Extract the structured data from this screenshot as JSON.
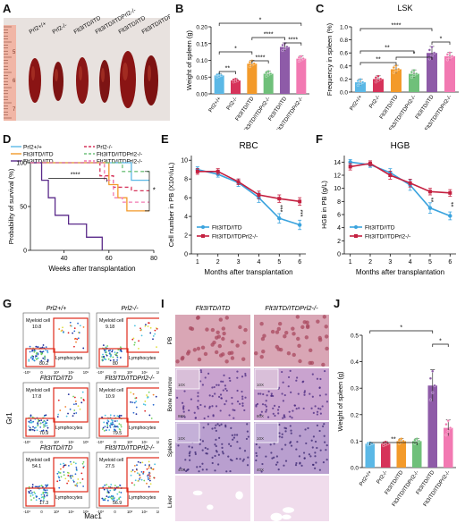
{
  "panels": {
    "A": "A",
    "B": "B",
    "C": "C",
    "D": "D",
    "E": "E",
    "F": "F",
    "G": "G",
    "I": "I",
    "J": "J"
  },
  "panel_a": {
    "ruler_ticks": [
      "5",
      "6",
      "7"
    ],
    "labels": [
      "Prl2+/+",
      "Prl2-/-",
      "Flt3ITD/ITD",
      "Flt3ITD/ITDPrl2-/-",
      "Flt3ITD/ITD",
      "Flt3ITD/ITDPrl2-/-"
    ]
  },
  "panel_g": {
    "col_titles": [
      "Prl2+/+",
      "Prl2-/-"
    ],
    "row_titles": [
      [
        "",
        ""
      ],
      [
        "Flt3ITD/ITD",
        "Flt3ITD/ITDPrl2-/-"
      ],
      [
        "Flt3ITD/ITD",
        "Flt3ITD/ITDPrl2-/-"
      ]
    ],
    "myeloid_label": "Myeloid cell",
    "lymph_label": "Lymphocytes",
    "myeloid_values": [
      [
        "10.8",
        "9.18"
      ],
      [
        "17.8",
        "10.9"
      ],
      [
        "54.1",
        "27.5"
      ]
    ],
    "lymph_values": [
      [
        "80.2",
        "80"
      ],
      [
        "70.9",
        "79.5"
      ],
      [
        "17.3",
        "56.9"
      ]
    ],
    "ylabel": "Gr1",
    "xlabel": "Mac1",
    "axis_ticks": [
      "-10³",
      "0",
      "10³",
      "10⁴",
      "10⁵"
    ]
  },
  "panel_i": {
    "col_titles": [
      "Flt3ITD/ITD",
      "Flt3ITD/ITDPrl2-/-"
    ],
    "row_titles": [
      "PB",
      "Bone marrow",
      "Spleen",
      "Liver"
    ],
    "mag_labels": [
      "",
      "80X",
      "40X",
      "2X"
    ],
    "inset_labels": [
      "",
      "10X",
      "10X",
      ""
    ],
    "tissue_colors": {
      "pb_bg": "#d9a6b5",
      "pb_cell": "#a8485f",
      "bm_bg": "#c9a3cf",
      "bm_cell": "#4a2a80",
      "sp_bg": "#b99fcf",
      "sp_cell": "#3a2570",
      "lv_bg": "#f0dcec",
      "lv_vessel": "#ffffff"
    }
  },
  "chart_data": [
    {
      "id": "B",
      "type": "bar",
      "title": "",
      "ylabel": "Weight of spleen (g)",
      "categories": [
        "Prl2+/+",
        "Prl2-/-",
        "Flt3ITD/ITD",
        "Flt3ITD/ITDPrl2-/-",
        "Flt3ITD/ITD",
        "Flt3ITD/ITDPrl2-/-"
      ],
      "values": [
        0.055,
        0.04,
        0.09,
        0.06,
        0.14,
        0.105
      ],
      "errors": [
        0.005,
        0.005,
        0.01,
        0.008,
        0.012,
        0.008
      ],
      "ylim": [
        0,
        0.2
      ],
      "yticks": [
        "0.00",
        "0.05",
        "0.10",
        "0.15",
        "0.20"
      ],
      "colors": [
        "#5bb8e6",
        "#d6335a",
        "#f39a2a",
        "#6fc07a",
        "#8e5ba8",
        "#f279b2"
      ],
      "significance": [
        "**",
        "****",
        "*",
        "****",
        "****",
        "*"
      ]
    },
    {
      "id": "C",
      "type": "bar",
      "title": "LSK",
      "ylabel": "Frequency in spleen (%)",
      "categories": [
        "Prl2+/+",
        "Prl2-/-",
        "Flt3ITD/ITD",
        "Flt3ITD/ITDPrl2-/-",
        "Flt3ITD/ITD",
        "Flt3ITD/ITDPrl2-/-"
      ],
      "values": [
        0.15,
        0.2,
        0.35,
        0.28,
        0.6,
        0.55
      ],
      "errors": [
        0.05,
        0.05,
        0.06,
        0.06,
        0.1,
        0.06
      ],
      "ylim": [
        0,
        1.0
      ],
      "yticks": [
        "0.0",
        "0.2",
        "0.4",
        "0.6",
        "0.8",
        "1.0"
      ],
      "colors": [
        "#5bb8e6",
        "#d6335a",
        "#f39a2a",
        "#6fc07a",
        "#8e5ba8",
        "#f279b2"
      ],
      "significance": [
        "**",
        "****",
        "**",
        "*",
        "*"
      ]
    },
    {
      "id": "D",
      "type": "line",
      "title": "",
      "xlabel": "Weeks after transplantation",
      "ylabel": "Probability of survival (%)",
      "xticks": [
        "40",
        "60",
        "80"
      ],
      "yticks": [
        "0",
        "50",
        "100"
      ],
      "xlim": [
        25,
        80
      ],
      "ylim": [
        0,
        100
      ],
      "legend": [
        "Prl2+/+",
        "Prl2-/-",
        "Flt3ITD/ITD",
        "Flt3ITD/ITDPrl2-/-",
        "Flt3ITD/ITD",
        "Flt3ITD/ITDPrl2-/-"
      ],
      "legend_colors": [
        "#5bb8e6",
        "#d6335a",
        "#f39a2a",
        "#6fc07a",
        "#5a2a8a",
        "#f279b2"
      ],
      "significance": [
        "****",
        "*"
      ],
      "series": [
        {
          "color": "#5bb8e6",
          "dash": "0",
          "points": [
            [
              25,
              100
            ],
            [
              70,
              100
            ],
            [
              70,
              80
            ],
            [
              78,
              80
            ]
          ]
        },
        {
          "color": "#d6335a",
          "dash": "4 3",
          "points": [
            [
              25,
              100
            ],
            [
              56,
              100
            ],
            [
              56,
              85
            ],
            [
              62,
              85
            ],
            [
              62,
              72
            ],
            [
              70,
              72
            ],
            [
              70,
              68
            ],
            [
              78,
              68
            ]
          ]
        },
        {
          "color": "#f39a2a",
          "dash": "0",
          "points": [
            [
              25,
              100
            ],
            [
              60,
              100
            ],
            [
              60,
              75
            ],
            [
              64,
              75
            ],
            [
              64,
              60
            ],
            [
              68,
              60
            ],
            [
              68,
              45
            ],
            [
              78,
              45
            ]
          ]
        },
        {
          "color": "#6fc07a",
          "dash": "4 3",
          "points": [
            [
              25,
              100
            ],
            [
              66,
              100
            ],
            [
              66,
              90
            ],
            [
              78,
              90
            ]
          ]
        },
        {
          "color": "#5a2a8a",
          "dash": "0",
          "points": [
            [
              25,
              100
            ],
            [
              30,
              100
            ],
            [
              30,
              80
            ],
            [
              33,
              80
            ],
            [
              33,
              60
            ],
            [
              36,
              60
            ],
            [
              36,
              40
            ],
            [
              42,
              40
            ],
            [
              42,
              30
            ],
            [
              50,
              30
            ],
            [
              50,
              15
            ],
            [
              57,
              15
            ],
            [
              57,
              0
            ]
          ]
        },
        {
          "color": "#f279b2",
          "dash": "4 3",
          "points": [
            [
              25,
              100
            ],
            [
              58,
              100
            ],
            [
              58,
              80
            ],
            [
              62,
              80
            ],
            [
              62,
              60
            ],
            [
              66,
              60
            ],
            [
              66,
              55
            ],
            [
              78,
              55
            ]
          ]
        }
      ]
    },
    {
      "id": "E",
      "type": "line",
      "title": "RBC",
      "xlabel": "Months after transplantation",
      "ylabel": "Cell number in PB (X10⁶/uL)",
      "x": [
        1,
        2,
        3,
        4,
        5,
        6
      ],
      "xticks": [
        "1",
        "2",
        "3",
        "4",
        "5",
        "6"
      ],
      "yticks": [
        "0",
        "2",
        "4",
        "6",
        "8",
        "10"
      ],
      "ylim": [
        0,
        10.5
      ],
      "legend": [
        "Flt3ITD/ITD",
        "Flt3ITD/ITDPrl2-/-"
      ],
      "significance": [
        "***",
        "***"
      ],
      "series": [
        {
          "name": "Flt3ITD/ITD",
          "color": "#3aa3de",
          "values": [
            9.0,
            8.5,
            7.6,
            6.0,
            3.8,
            3.1
          ],
          "errors": [
            0.3,
            0.3,
            0.4,
            0.5,
            0.5,
            0.5
          ]
        },
        {
          "name": "Flt3ITD/ITDPrl2-/-",
          "color": "#c42040",
          "values": [
            8.8,
            8.8,
            7.7,
            6.3,
            5.9,
            5.6
          ],
          "errors": [
            0.3,
            0.3,
            0.3,
            0.4,
            0.4,
            0.4
          ]
        }
      ]
    },
    {
      "id": "F",
      "type": "line",
      "title": "HGB",
      "xlabel": "Months after transplantation",
      "ylabel": "HGB in PB (g/L)",
      "x": [
        1,
        2,
        3,
        4,
        5,
        6
      ],
      "xticks": [
        "1",
        "2",
        "3",
        "4",
        "5",
        "6"
      ],
      "yticks": [
        "0",
        "2",
        "4",
        "6",
        "8",
        "10",
        "12",
        "14"
      ],
      "ylim": [
        0,
        15
      ],
      "legend": [
        "Flt3ITD/ITD",
        "Flt3ITD/ITDPrl2-/-"
      ],
      "significance": [
        "**",
        "**"
      ],
      "series": [
        {
          "name": "Flt3ITD/ITD",
          "color": "#3aa3de",
          "values": [
            14.0,
            13.6,
            12.4,
            10.5,
            7.0,
            5.8
          ],
          "errors": [
            0.4,
            0.4,
            0.6,
            0.8,
            0.8,
            0.6
          ]
        },
        {
          "name": "Flt3ITD/ITDPrl2-/-",
          "color": "#c42040",
          "values": [
            13.3,
            13.8,
            12.0,
            10.8,
            9.5,
            9.3
          ],
          "errors": [
            0.5,
            0.4,
            0.6,
            0.6,
            0.5,
            0.5
          ]
        }
      ]
    },
    {
      "id": "J",
      "type": "bar",
      "title": "",
      "ylabel": "Weight of spleen (g)",
      "categories": [
        "Prl2+/+",
        "Prl2-/-",
        "Flt3ITD/ITD",
        "Flt3ITD/ITDPrl2-/-",
        "Flt3ITD/ITD",
        "Flt3ITD/ITDPrl2-/-"
      ],
      "values": [
        0.09,
        0.09,
        0.1,
        0.1,
        0.31,
        0.15
      ],
      "errors": [
        0.005,
        0.008,
        0.01,
        0.01,
        0.06,
        0.03
      ],
      "ylim": [
        0,
        0.5
      ],
      "yticks": [
        "0.0",
        "0.1",
        "0.2",
        "0.3",
        "0.4",
        "0.5"
      ],
      "colors": [
        "#5bb8e6",
        "#d6335a",
        "#f39a2a",
        "#6fc07a",
        "#8e5ba8",
        "#f279b2"
      ],
      "significance": [
        "**",
        "*",
        "*"
      ]
    }
  ]
}
